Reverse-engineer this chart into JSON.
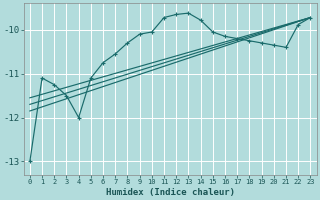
{
  "xlabel": "Humidex (Indice chaleur)",
  "bg_color": "#b2dcdc",
  "grid_color": "#ffffff",
  "line_color": "#1a6b6b",
  "xlim": [
    -0.5,
    23.5
  ],
  "ylim": [
    -13.3,
    -9.4
  ],
  "yticks": [
    -13,
    -12,
    -11,
    -10
  ],
  "xticks": [
    0,
    1,
    2,
    3,
    4,
    5,
    6,
    7,
    8,
    9,
    10,
    11,
    12,
    13,
    14,
    15,
    16,
    17,
    18,
    19,
    20,
    21,
    22,
    23
  ],
  "line1_x": [
    0,
    1,
    2,
    3,
    4,
    5,
    6,
    7,
    8,
    9,
    10,
    11,
    12,
    13,
    14,
    15,
    16,
    17,
    18,
    19,
    20,
    21,
    22,
    23
  ],
  "line1_y": [
    -13.0,
    -11.1,
    -11.25,
    -11.5,
    -12.0,
    -11.1,
    -10.75,
    -10.55,
    -10.3,
    -10.1,
    -10.05,
    -9.72,
    -9.65,
    -9.62,
    -9.78,
    -10.05,
    -10.15,
    -10.2,
    -10.25,
    -10.3,
    -10.35,
    -10.4,
    -9.88,
    -9.72
  ],
  "line2_x": [
    0,
    23
  ],
  "line2_y": [
    -11.55,
    -9.72
  ],
  "line3_x": [
    0,
    23
  ],
  "line3_y": [
    -11.7,
    -9.72
  ],
  "line4_x": [
    0,
    23
  ],
  "line4_y": [
    -11.85,
    -9.72
  ]
}
